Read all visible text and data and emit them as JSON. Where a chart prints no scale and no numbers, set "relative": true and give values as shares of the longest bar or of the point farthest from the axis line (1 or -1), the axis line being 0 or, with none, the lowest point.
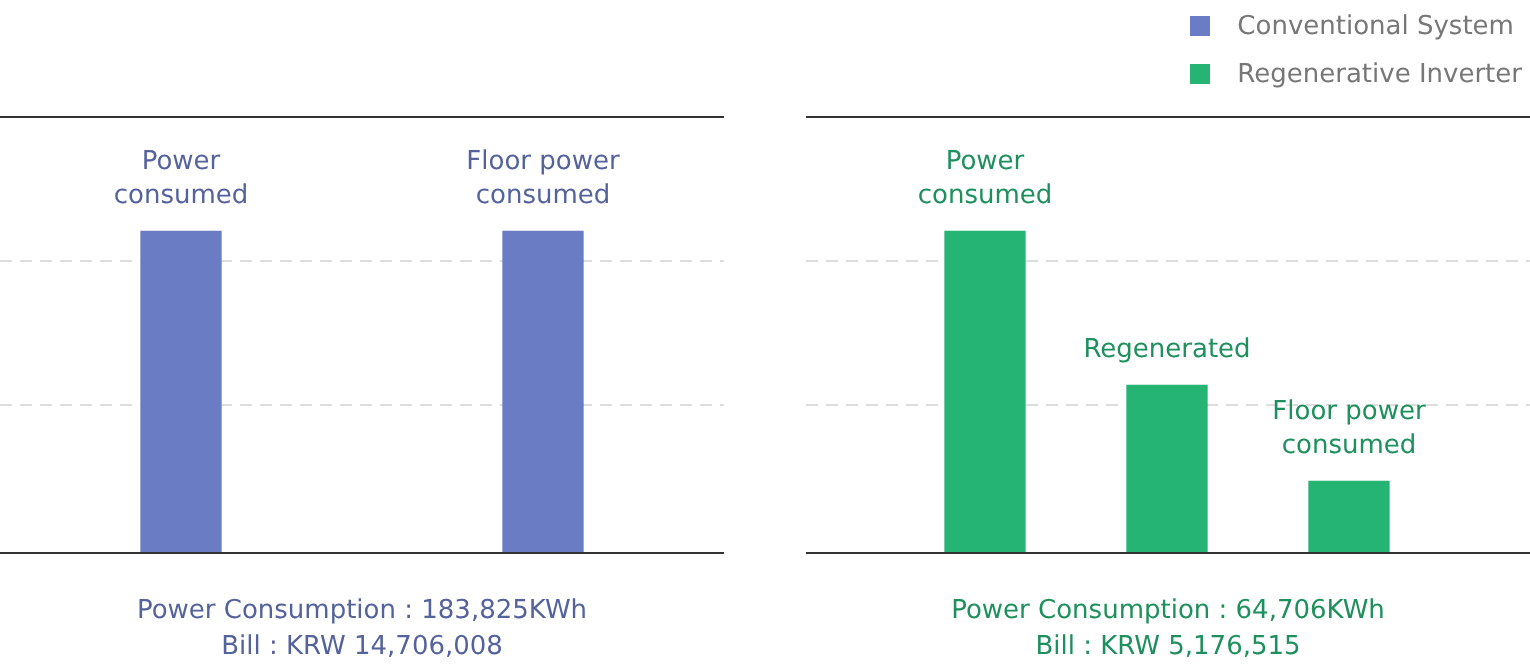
{
  "chart_data": [
    {
      "type": "bar",
      "relative": true,
      "categories": [
        "Power\nconsumed",
        "Floor power\nconsumed"
      ],
      "legend": "top right",
      "ref_lines": [
        {
          "axis": "y",
          "value": 0.46,
          "color": "#dddddd",
          "line_style": "dashed"
        },
        {
          "axis": "y",
          "value": 0.91,
          "color": "#dddddd",
          "line_style": "dashed"
        }
      ],
      "series": [
        {
          "name": "Conventional System",
          "color": "#6a7cc4",
          "values": [
            1,
            1
          ]
        }
      ],
      "annotations": [
        "Power Consumption : 183,825KWh",
        "Bill : KRW 14,706,008"
      ]
    },
    {
      "type": "bar",
      "relative": true,
      "categories": [
        "Power\nconsumed",
        "Regenerated",
        "Floor power\nconsumed"
      ],
      "legend": "top right",
      "ref_lines": [
        {
          "axis": "y",
          "value": 0.46,
          "color": "#dddddd",
          "line_style": "dashed"
        },
        {
          "axis": "y",
          "value": 0.91,
          "color": "#dddddd",
          "line_style": "dashed"
        }
      ],
      "series": [
        {
          "name": "Regenerative Inverter",
          "color": "#25b474",
          "values": [
            1,
            0.52,
            0.22
          ]
        }
      ],
      "annotations": [
        "Power Consumption : 64,706KWh",
        "Bill : KRW 5,176,515"
      ]
    }
  ]
}
